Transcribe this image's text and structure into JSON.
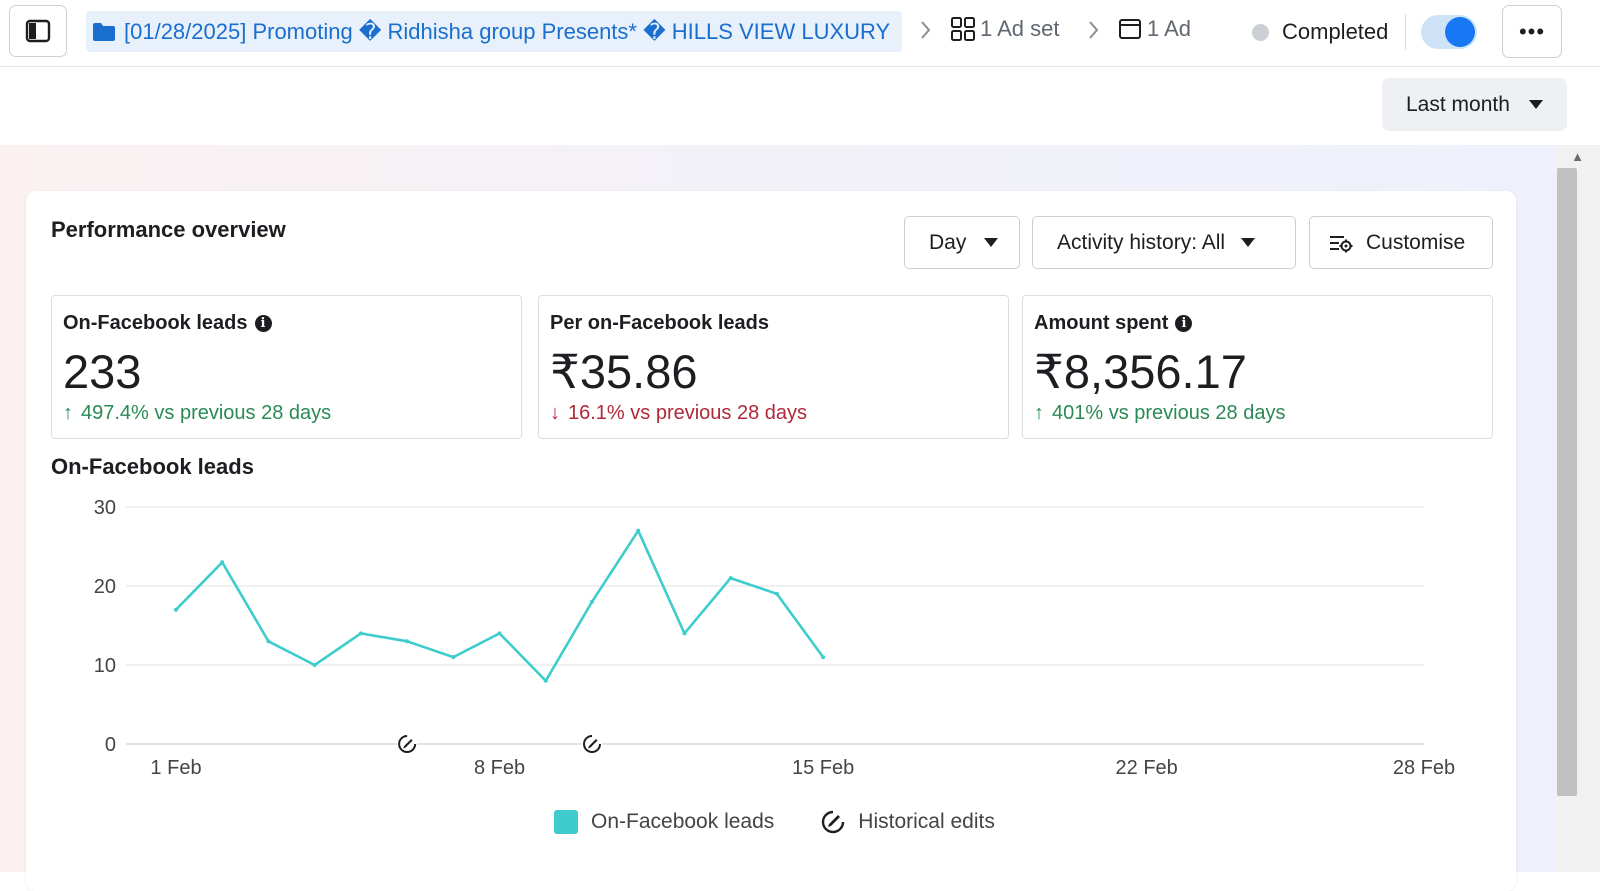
{
  "topbar": {
    "campaign_name": "[01/28/2025] Promoting � Ridhisha group Presents* � HILLS VIEW LUXURY",
    "adset_label": "1 Ad set",
    "ad_label": "1 Ad",
    "status": "Completed",
    "toggle_on": true,
    "more_label": "•••"
  },
  "date_range": {
    "label": "Last month"
  },
  "overview": {
    "title": "Performance overview",
    "granularity_label": "Day",
    "activity_label": "Activity history: All",
    "customise_label": "Customise"
  },
  "metrics": [
    {
      "label": "On-Facebook leads",
      "value": "233",
      "delta": "497.4% vs previous 28 days",
      "direction": "up",
      "info": true
    },
    {
      "label": "Per on-Facebook leads",
      "value": "₹35.86",
      "delta": "16.1% vs previous 28 days",
      "direction": "down",
      "info": false
    },
    {
      "label": "Amount spent",
      "value": "₹8,356.17",
      "delta": "401% vs previous 28 days",
      "direction": "up",
      "info": true
    }
  ],
  "chart_data": {
    "type": "line",
    "title": "On-Facebook leads",
    "x_tick_labels": [
      "1 Feb",
      "8 Feb",
      "15 Feb",
      "22 Feb",
      "28 Feb"
    ],
    "x_tick_days": [
      1,
      8,
      15,
      22,
      28
    ],
    "x_range_days": [
      1,
      28
    ],
    "y_ticks": [
      0,
      10,
      20,
      30
    ],
    "ylim": [
      0,
      30
    ],
    "grid": true,
    "series": [
      {
        "name": "On-Facebook leads",
        "color": "#3ecccc",
        "x_days": [
          1,
          2,
          3,
          4,
          5,
          6,
          7,
          8,
          9,
          10,
          11,
          12,
          13,
          14,
          15
        ],
        "values": [
          17,
          23,
          13,
          10,
          14,
          13,
          11,
          14,
          8,
          18,
          27,
          14,
          21,
          19,
          11
        ]
      }
    ],
    "historical_edits_days": [
      6,
      10
    ],
    "legend": [
      "On-Facebook leads",
      "Historical edits"
    ],
    "legend_position": "bottom"
  }
}
